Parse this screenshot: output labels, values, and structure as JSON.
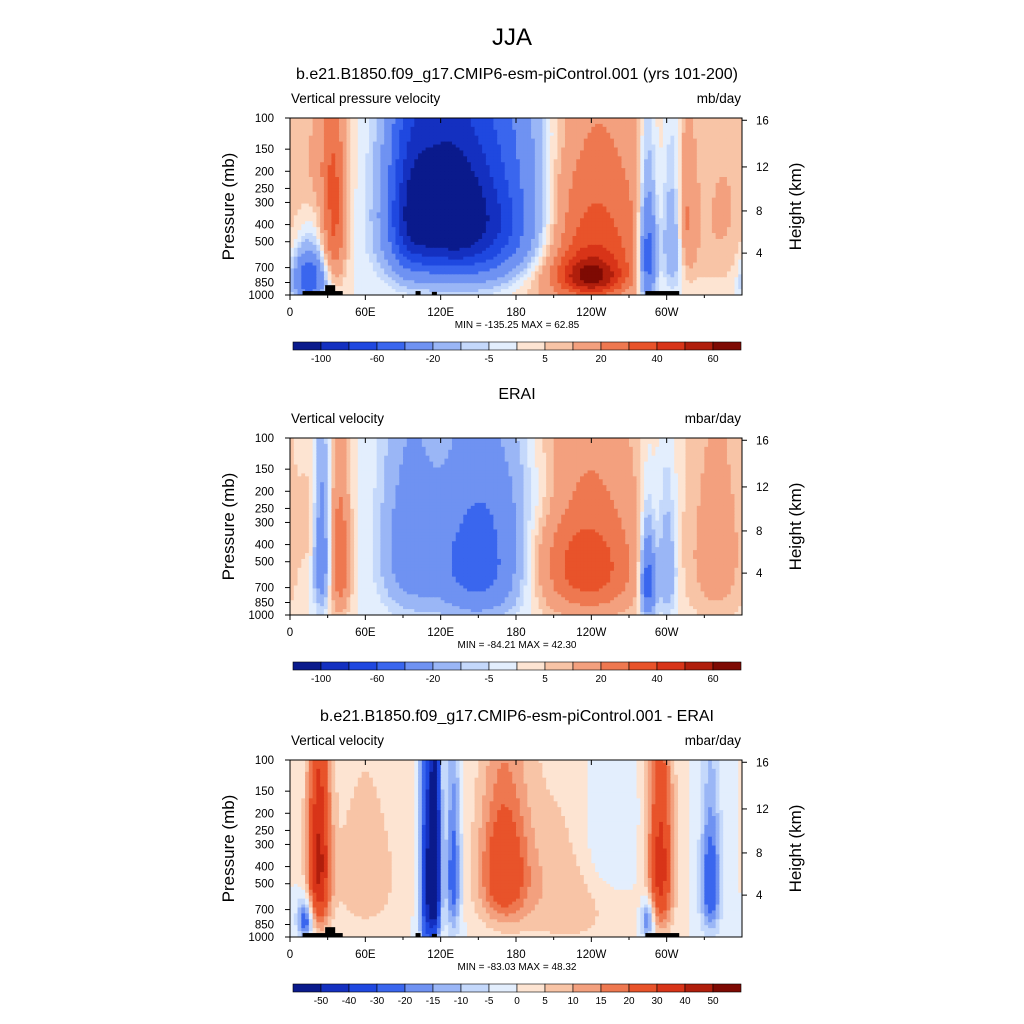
{
  "page": {
    "title": "JJA"
  },
  "palettes": {
    "main": [
      "#0a1a8c",
      "#1430c0",
      "#1f48e0",
      "#3a66ee",
      "#6f92f2",
      "#9ab6f6",
      "#c4d8fb",
      "#e3eefd",
      "#fde4d2",
      "#f8c4a6",
      "#f3a07e",
      "#ee7850",
      "#e8532a",
      "#d83418",
      "#b01e0c",
      "#7e0a03"
    ],
    "diff": [
      "#0a1a8c",
      "#1430c0",
      "#1f48e0",
      "#3a66ee",
      "#6f92f2",
      "#9ab6f6",
      "#c4d8fb",
      "#e3eefd",
      "#fde4d2",
      "#f8c4a6",
      "#f3a07e",
      "#ee7850",
      "#e8532a",
      "#d83418",
      "#b01e0c",
      "#7e0a03"
    ],
    "terrain": "#000000"
  },
  "chart_data": [
    {
      "type": "heatmap",
      "title": "b.e21.B1850.f09_g17.CMIP6-esm-piControl.001 (yrs 101-200)",
      "left_string": "Vertical pressure velocity",
      "right_string": "mb/day",
      "ylabel": "Pressure (mb)",
      "ylabel_right": "Height (km)",
      "x_ticks": [
        {
          "lon": 0,
          "label": "0"
        },
        {
          "lon": 60,
          "label": "60E"
        },
        {
          "lon": 120,
          "label": "120E"
        },
        {
          "lon": 180,
          "label": "180"
        },
        {
          "lon": 240,
          "label": "120W"
        },
        {
          "lon": 300,
          "label": "60W"
        }
      ],
      "xlim": [
        0,
        360
      ],
      "y_ticks": [
        {
          "p": 100,
          "label": "100"
        },
        {
          "p": 150,
          "label": "150"
        },
        {
          "p": 200,
          "label": "200"
        },
        {
          "p": 250,
          "label": "250"
        },
        {
          "p": 300,
          "label": "300"
        },
        {
          "p": 400,
          "label": "400"
        },
        {
          "p": 500,
          "label": "500"
        },
        {
          "p": 700,
          "label": "700"
        },
        {
          "p": 850,
          "label": "850"
        },
        {
          "p": 1000,
          "label": "1000"
        }
      ],
      "height_ticks": [
        {
          "p": 103,
          "label": "16"
        },
        {
          "p": 189,
          "label": "12"
        },
        {
          "p": 335,
          "label": "8"
        },
        {
          "p": 580,
          "label": "4"
        }
      ],
      "ylim": [
        100,
        1000
      ],
      "stats": "MIN = -135.25  MAX =  62.85",
      "palette": "main",
      "levels": [
        -120,
        -100,
        -80,
        -60,
        -40,
        -20,
        -10,
        -5,
        0,
        5,
        10,
        20,
        30,
        40,
        50,
        60,
        80
      ],
      "colorbar_labels": [
        {
          "index": 1,
          "label": "-100"
        },
        {
          "index": 3,
          "label": "-60"
        },
        {
          "index": 5,
          "label": "-20"
        },
        {
          "index": 7,
          "label": "-5"
        },
        {
          "index": 9,
          "label": "5"
        },
        {
          "index": 11,
          "label": "20"
        },
        {
          "index": 13,
          "label": "40"
        },
        {
          "index": 15,
          "label": "60"
        }
      ],
      "features": [
        {
          "lon": 150,
          "p": 380,
          "value": -95,
          "wl": 50,
          "wp": 380
        },
        {
          "lon": 95,
          "p": 350,
          "value": -55,
          "wl": 18,
          "wp": 350
        },
        {
          "lon": 120,
          "p": 300,
          "value": -60,
          "wl": 30,
          "wp": 380
        },
        {
          "lon": 15,
          "p": 800,
          "value": -60,
          "wl": 12,
          "wp": 250
        },
        {
          "lon": 35,
          "p": 400,
          "value": 32,
          "wl": 10,
          "wp": 400
        },
        {
          "lon": 25,
          "p": 170,
          "value": 10,
          "wl": 20,
          "wp": 150
        },
        {
          "lon": 235,
          "p": 500,
          "value": 38,
          "wl": 55,
          "wp": 550
        },
        {
          "lon": 240,
          "p": 800,
          "value": 40,
          "wl": 25,
          "wp": 200
        },
        {
          "lon": 285,
          "p": 600,
          "value": -65,
          "wl": 7,
          "wp": 420
        },
        {
          "lon": 305,
          "p": 500,
          "value": -30,
          "wl": 10,
          "wp": 400
        },
        {
          "lon": 315,
          "p": 400,
          "value": 22,
          "wl": 8,
          "wp": 350
        },
        {
          "lon": 345,
          "p": 350,
          "value": 10,
          "wl": 25,
          "wp": 500
        },
        {
          "lon": 185,
          "p": 120,
          "value": -5,
          "wl": 40,
          "wp": 60
        }
      ],
      "terrain": [
        {
          "from": 10,
          "to": 42,
          "top": 950
        },
        {
          "from": 28,
          "to": 36,
          "top": 880
        },
        {
          "from": 100,
          "to": 104,
          "top": 950
        },
        {
          "from": 113,
          "to": 117,
          "top": 960
        },
        {
          "from": 283,
          "to": 310,
          "top": 950
        }
      ]
    },
    {
      "type": "heatmap",
      "title": "ERAI",
      "left_string": "Vertical velocity",
      "right_string": "mbar/day",
      "ylabel": "Pressure (mb)",
      "ylabel_right": "Height (km)",
      "x_ticks": [
        {
          "lon": 0,
          "label": "0"
        },
        {
          "lon": 60,
          "label": "60E"
        },
        {
          "lon": 120,
          "label": "120E"
        },
        {
          "lon": 180,
          "label": "180"
        },
        {
          "lon": 240,
          "label": "120W"
        },
        {
          "lon": 300,
          "label": "60W"
        }
      ],
      "xlim": [
        0,
        360
      ],
      "y_ticks": [
        {
          "p": 100,
          "label": "100"
        },
        {
          "p": 150,
          "label": "150"
        },
        {
          "p": 200,
          "label": "200"
        },
        {
          "p": 250,
          "label": "250"
        },
        {
          "p": 300,
          "label": "300"
        },
        {
          "p": 400,
          "label": "400"
        },
        {
          "p": 500,
          "label": "500"
        },
        {
          "p": 700,
          "label": "700"
        },
        {
          "p": 850,
          "label": "850"
        },
        {
          "p": 1000,
          "label": "1000"
        }
      ],
      "height_ticks": [
        {
          "p": 103,
          "label": "16"
        },
        {
          "p": 189,
          "label": "12"
        },
        {
          "p": 335,
          "label": "8"
        },
        {
          "p": 580,
          "label": "4"
        }
      ],
      "ylim": [
        100,
        1000
      ],
      "stats": "MIN = -84.21  MAX =  42.30",
      "palette": "main",
      "levels": [
        -120,
        -100,
        -80,
        -60,
        -40,
        -20,
        -10,
        -5,
        0,
        5,
        10,
        20,
        30,
        40,
        50,
        60,
        80
      ],
      "colorbar_labels": [
        {
          "index": 1,
          "label": "-100"
        },
        {
          "index": 3,
          "label": "-60"
        },
        {
          "index": 5,
          "label": "-20"
        },
        {
          "index": 7,
          "label": "-5"
        },
        {
          "index": 9,
          "label": "5"
        },
        {
          "index": 11,
          "label": "20"
        },
        {
          "index": 13,
          "label": "40"
        },
        {
          "index": 15,
          "label": "60"
        }
      ],
      "features": [
        {
          "lon": 150,
          "p": 500,
          "value": -55,
          "wl": 35,
          "wp": 450
        },
        {
          "lon": 95,
          "p": 420,
          "value": -30,
          "wl": 22,
          "wp": 450
        },
        {
          "lon": 25,
          "p": 450,
          "value": -38,
          "wl": 6,
          "wp": 400
        },
        {
          "lon": 40,
          "p": 500,
          "value": 30,
          "wl": 8,
          "wp": 450
        },
        {
          "lon": 18,
          "p": 300,
          "value": 7,
          "wl": 10,
          "wp": 200
        },
        {
          "lon": 230,
          "p": 350,
          "value": 18,
          "wl": 50,
          "wp": 550
        },
        {
          "lon": 240,
          "p": 600,
          "value": 22,
          "wl": 40,
          "wp": 400
        },
        {
          "lon": 285,
          "p": 650,
          "value": -60,
          "wl": 6,
          "wp": 350
        },
        {
          "lon": 300,
          "p": 550,
          "value": -25,
          "wl": 8,
          "wp": 400
        },
        {
          "lon": 340,
          "p": 450,
          "value": 15,
          "wl": 25,
          "wp": 600
        },
        {
          "lon": 190,
          "p": 200,
          "value": -8,
          "wl": 40,
          "wp": 150
        }
      ],
      "terrain": []
    },
    {
      "type": "heatmap",
      "title": "b.e21.B1850.f09_g17.CMIP6-esm-piControl.001 - ERAI",
      "left_string": "Vertical velocity",
      "right_string": "mbar/day",
      "ylabel": "Pressure (mb)",
      "ylabel_right": "Height (km)",
      "x_ticks": [
        {
          "lon": 0,
          "label": "0"
        },
        {
          "lon": 60,
          "label": "60E"
        },
        {
          "lon": 120,
          "label": "120E"
        },
        {
          "lon": 180,
          "label": "180"
        },
        {
          "lon": 240,
          "label": "120W"
        },
        {
          "lon": 300,
          "label": "60W"
        }
      ],
      "xlim": [
        0,
        360
      ],
      "y_ticks": [
        {
          "p": 100,
          "label": "100"
        },
        {
          "p": 150,
          "label": "150"
        },
        {
          "p": 200,
          "label": "200"
        },
        {
          "p": 250,
          "label": "250"
        },
        {
          "p": 300,
          "label": "300"
        },
        {
          "p": 400,
          "label": "400"
        },
        {
          "p": 500,
          "label": "500"
        },
        {
          "p": 700,
          "label": "700"
        },
        {
          "p": 850,
          "label": "850"
        },
        {
          "p": 1000,
          "label": "1000"
        }
      ],
      "height_ticks": [
        {
          "p": 103,
          "label": "16"
        },
        {
          "p": 189,
          "label": "12"
        },
        {
          "p": 335,
          "label": "8"
        },
        {
          "p": 580,
          "label": "4"
        }
      ],
      "ylim": [
        100,
        1000
      ],
      "stats": "MIN = -83.03  MAX =  48.32",
      "palette": "diff",
      "levels": [
        -60,
        -50,
        -40,
        -30,
        -20,
        -15,
        -10,
        -5,
        0,
        5,
        10,
        15,
        20,
        30,
        40,
        50,
        60
      ],
      "colorbar_labels": [
        {
          "index": 1,
          "label": "-50"
        },
        {
          "index": 2,
          "label": "-40"
        },
        {
          "index": 3,
          "label": "-30"
        },
        {
          "index": 4,
          "label": "-20"
        },
        {
          "index": 5,
          "label": "-15"
        },
        {
          "index": 6,
          "label": "-10"
        },
        {
          "index": 7,
          "label": "-5"
        },
        {
          "index": 8,
          "label": "0"
        },
        {
          "index": 9,
          "label": "5"
        },
        {
          "index": 10,
          "label": "10"
        },
        {
          "index": 11,
          "label": "15"
        },
        {
          "index": 12,
          "label": "20"
        },
        {
          "index": 13,
          "label": "30"
        },
        {
          "index": 14,
          "label": "40"
        },
        {
          "index": 15,
          "label": "50"
        }
      ],
      "features": [
        {
          "lon": 23,
          "p": 380,
          "value": 42,
          "wl": 9,
          "wp": 450
        },
        {
          "lon": 12,
          "p": 800,
          "value": -28,
          "wl": 6,
          "wp": 200
        },
        {
          "lon": 110,
          "p": 500,
          "value": -50,
          "wl": 6,
          "wp": 650
        },
        {
          "lon": 116,
          "p": 400,
          "value": -60,
          "wl": 4,
          "wp": 500
        },
        {
          "lon": 130,
          "p": 450,
          "value": -25,
          "wl": 6,
          "wp": 450
        },
        {
          "lon": 170,
          "p": 420,
          "value": 28,
          "wl": 20,
          "wp": 380
        },
        {
          "lon": 220,
          "p": 550,
          "value": 10,
          "wl": 40,
          "wp": 500
        },
        {
          "lon": 295,
          "p": 400,
          "value": 35,
          "wl": 10,
          "wp": 450
        },
        {
          "lon": 285,
          "p": 800,
          "value": -25,
          "wl": 5,
          "wp": 200
        },
        {
          "lon": 335,
          "p": 500,
          "value": -28,
          "wl": 8,
          "wp": 400
        },
        {
          "lon": 60,
          "p": 450,
          "value": 10,
          "wl": 25,
          "wp": 400
        },
        {
          "lon": 250,
          "p": 300,
          "value": -8,
          "wl": 25,
          "wp": 300
        }
      ],
      "terrain": [
        {
          "from": 10,
          "to": 42,
          "top": 950
        },
        {
          "from": 28,
          "to": 36,
          "top": 880
        },
        {
          "from": 100,
          "to": 104,
          "top": 950
        },
        {
          "from": 113,
          "to": 117,
          "top": 960
        },
        {
          "from": 283,
          "to": 310,
          "top": 950
        }
      ]
    }
  ]
}
